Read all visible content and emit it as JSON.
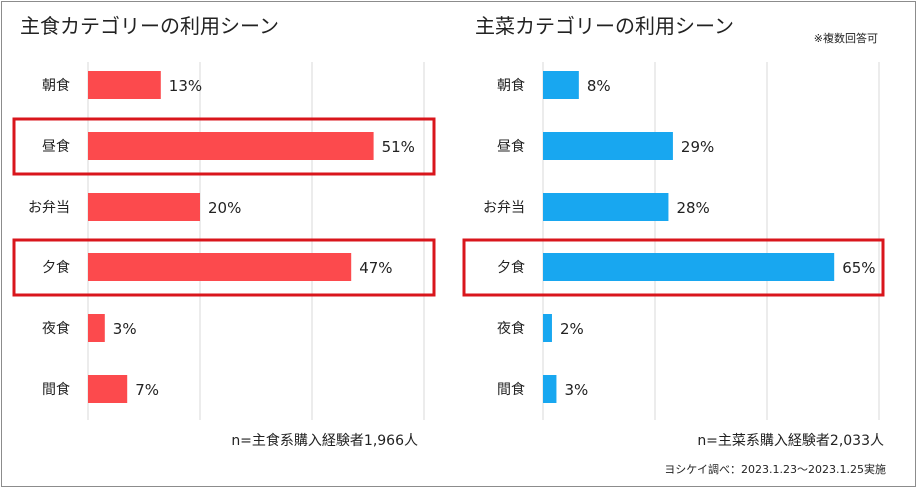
{
  "note_multiple": "※複数回答可",
  "survey_credit": "ヨシケイ調べ：2023.1.23～2023.1.25実施",
  "colors": {
    "left_bar": "#fc4a4d",
    "right_bar": "#18a7f0",
    "highlight": "#d9161c"
  },
  "chart_data": [
    {
      "type": "bar",
      "orientation": "horizontal",
      "title": "主食カテゴリーの利用シーン",
      "categories": [
        "朝食",
        "昼食",
        "お弁当",
        "夕食",
        "夜食",
        "間食"
      ],
      "values": [
        13,
        51,
        20,
        47,
        3,
        7
      ],
      "value_labels": [
        "13%",
        "51%",
        "20%",
        "47%",
        "3%",
        "7%"
      ],
      "unit": "%",
      "highlighted": [
        "昼食",
        "夕食"
      ],
      "sample_note": "n=主食系購入経験者1,966人",
      "grid": true,
      "xlim": [
        0,
        60
      ]
    },
    {
      "type": "bar",
      "orientation": "horizontal",
      "title": "主菜カテゴリーの利用シーン",
      "categories": [
        "朝食",
        "昼食",
        "お弁当",
        "夕食",
        "夜食",
        "間食"
      ],
      "values": [
        8,
        29,
        28,
        65,
        2,
        3
      ],
      "value_labels": [
        "8%",
        "29%",
        "28%",
        "65%",
        "2%",
        "3%"
      ],
      "unit": "%",
      "highlighted": [
        "夕食"
      ],
      "sample_note": "n=主菜系購入経験者2,033人",
      "grid": true,
      "xlim": [
        0,
        75
      ]
    }
  ]
}
